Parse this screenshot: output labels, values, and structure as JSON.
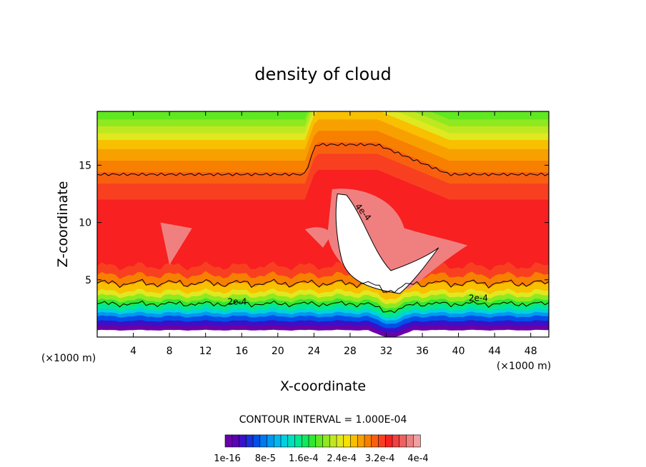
{
  "chart_data": {
    "type": "heatmap",
    "title": "density of cloud",
    "xlabel": "X-coordinate",
    "ylabel": "Z-coordinate",
    "xlim": [
      0,
      50
    ],
    "ylim": [
      0,
      19.7
    ],
    "x_unit": "(×1000 m)",
    "x_ticks": [
      4,
      8,
      12,
      16,
      20,
      24,
      28,
      32,
      36,
      40,
      44,
      48
    ],
    "y_ticks": [
      5,
      10,
      15
    ],
    "contour_interval_label": "CONTOUR INTERVAL = 1.000E-04",
    "contour_labels": [
      {
        "text": "2e-4",
        "x": 15.5,
        "z": 3.1
      },
      {
        "text": "4e-4",
        "x": 29.2,
        "z": 11.0
      },
      {
        "text": "2e-4",
        "x": 42.2,
        "z": 3.4
      }
    ],
    "colorbar": {
      "labels": [
        "1e-16",
        "8e-5",
        "1.6e-4",
        "2.4e-4",
        "3.2e-4",
        "4e-4"
      ],
      "colors": [
        "#6a00a8",
        "#5a00b8",
        "#3a10c8",
        "#1a30d8",
        "#0050e8",
        "#0078f0",
        "#0098f0",
        "#00b8f0",
        "#00d0e0",
        "#00e0c0",
        "#00e890",
        "#10e860",
        "#30e830",
        "#60e820",
        "#90e820",
        "#c0e820",
        "#e0e820",
        "#f8e000",
        "#f8c000",
        "#f8a000",
        "#f88000",
        "#f86010",
        "#f84020",
        "#f82020",
        "#f04040",
        "#f06060",
        "#f08080",
        "#f0a0a0"
      ]
    },
    "bands": [
      {
        "z": 0.0,
        "color": "#ffffff"
      },
      {
        "z": 0.6,
        "color": "#6a00a8"
      },
      {
        "z": 1.0,
        "color": "#3a10c8"
      },
      {
        "z": 1.4,
        "color": "#0050e8"
      },
      {
        "z": 1.8,
        "color": "#0098f0"
      },
      {
        "z": 2.1,
        "color": "#00d0e0"
      },
      {
        "z": 2.4,
        "color": "#00e890"
      },
      {
        "z": 2.8,
        "color": "#30e830"
      },
      {
        "z": 3.2,
        "color": "#90e820"
      },
      {
        "z": 3.6,
        "color": "#e0e820"
      },
      {
        "z": 4.0,
        "color": "#f8c000"
      },
      {
        "z": 4.6,
        "color": "#f88000"
      },
      {
        "z": 5.4,
        "color": "#f84020"
      },
      {
        "z": 6.2,
        "color": "#f82020"
      },
      {
        "z": 12.0,
        "color": "#f84020"
      },
      {
        "z": 13.4,
        "color": "#f86010"
      },
      {
        "z": 14.4,
        "color": "#f88000"
      },
      {
        "z": 15.4,
        "color": "#f8a000"
      },
      {
        "z": 16.4,
        "color": "#f8c000"
      },
      {
        "z": 17.2,
        "color": "#e0e820"
      },
      {
        "z": 17.8,
        "color": "#c0e820"
      },
      {
        "z": 18.4,
        "color": "#90e820"
      },
      {
        "z": 19.0,
        "color": "#60e820"
      }
    ]
  }
}
